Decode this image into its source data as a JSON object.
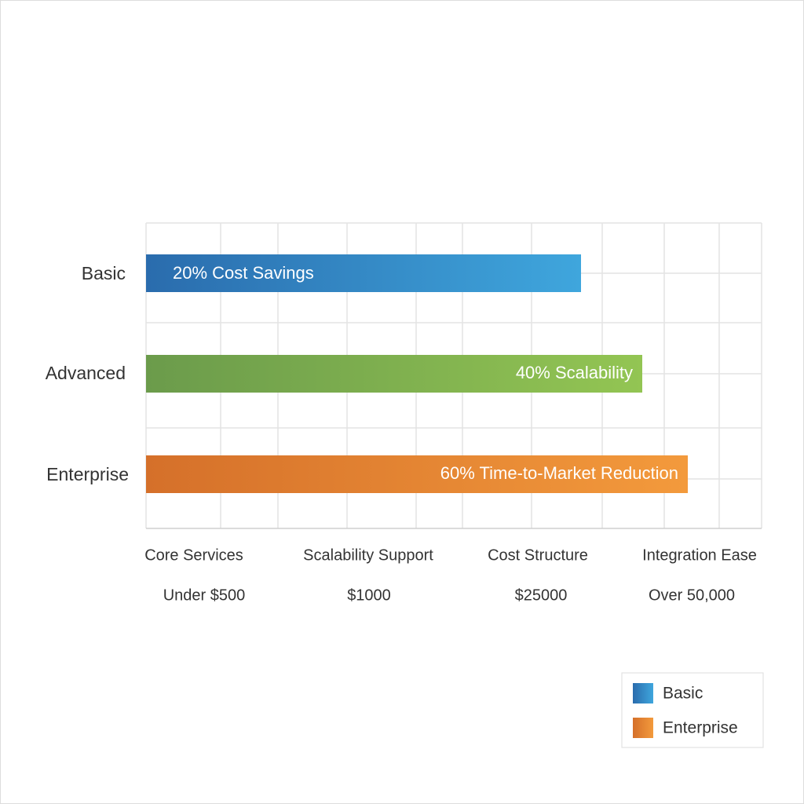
{
  "rows": [
    {
      "label": "Basic",
      "bar_text": "20% Cost Savings"
    },
    {
      "label": "Advanced",
      "bar_text": "40% Scalability"
    },
    {
      "label": "Enterprise",
      "bar_text": "60% Time-to-Market Reduction"
    }
  ],
  "columns": [
    {
      "title": "Core Services",
      "price": "Under $500"
    },
    {
      "title": "Scalability Support",
      "price": "$1000"
    },
    {
      "title": "Cost Structure",
      "price": "$25000"
    },
    {
      "title": "Integration Ease",
      "price": "Over 50,000"
    }
  ],
  "legend": [
    "Basic",
    "Enterprise"
  ]
}
